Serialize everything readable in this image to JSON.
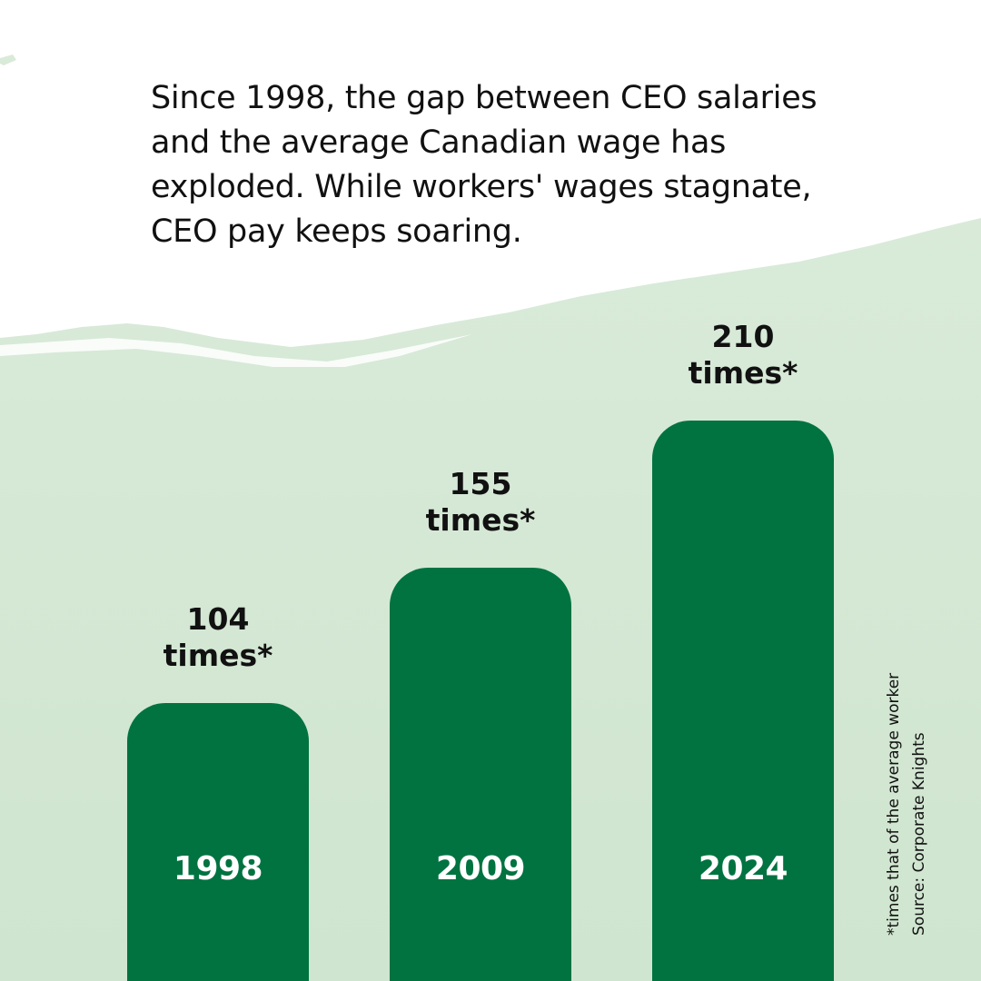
{
  "intro_text": "Since 1998, the gap between CEO salaries and the average Canadian wage has exploded. While workers' wages stagnate, CEO pay keeps soaring.",
  "colors": {
    "bar": "#007340",
    "background_wash": "#d5e8d4",
    "text": "#111111",
    "year_text": "#ffffff"
  },
  "chart_data": {
    "type": "bar",
    "title": "",
    "xlabel": "",
    "ylabel": "",
    "categories": [
      "1998",
      "2009",
      "2024"
    ],
    "values": [
      104,
      155,
      210
    ],
    "value_labels": [
      {
        "number": "104",
        "unit": "times*"
      },
      {
        "number": "155",
        "unit": "times*"
      },
      {
        "number": "210",
        "unit": "times*"
      }
    ],
    "grid": false,
    "legend": "none"
  },
  "footnote": {
    "line1": "*times that of the average worker",
    "line2": "Source: Corporate Knights"
  }
}
